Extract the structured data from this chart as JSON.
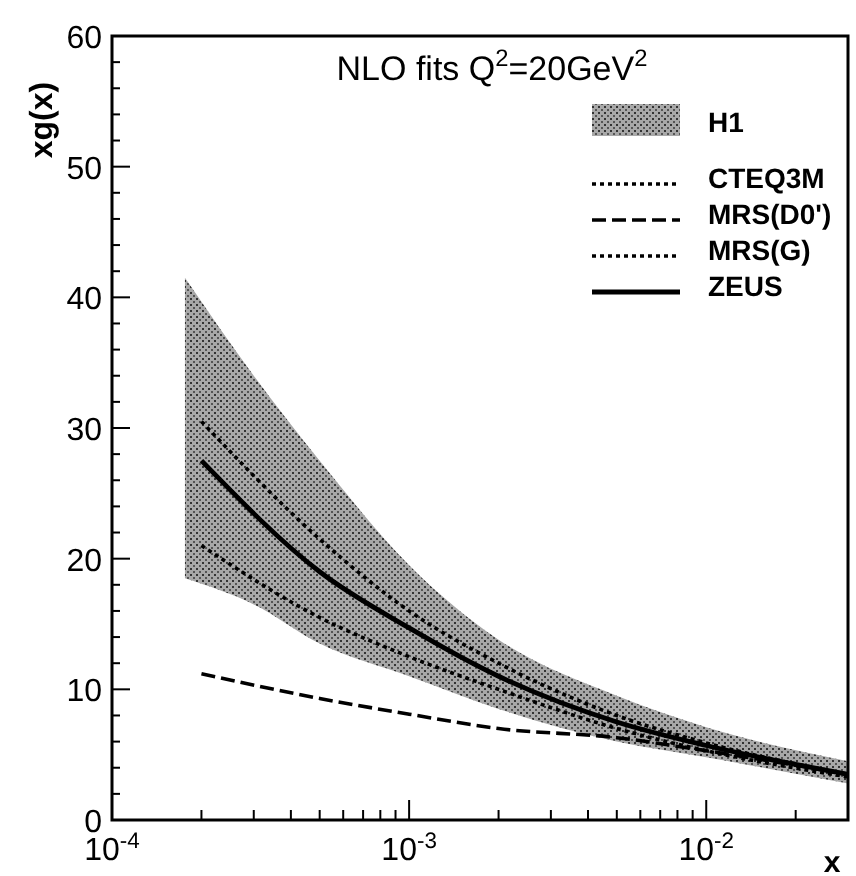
{
  "chart_data": {
    "type": "line",
    "title": "NLO fits  Q$^{2}$=20GeV$^{2}$",
    "xlabel": "x",
    "ylabel": "xg(x)",
    "log": "x",
    "grid": false,
    "legend": "top right",
    "xlim": [
      0.0001,
      0.03
    ],
    "ylim": [
      0,
      60
    ],
    "xticks": [
      {
        "value": 0.0001,
        "label": "10$^{-4}$"
      },
      {
        "value": 0.0002,
        "label": null
      },
      {
        "value": 0.0003,
        "label": null
      },
      {
        "value": 0.0004,
        "label": null
      },
      {
        "value": 0.0005,
        "label": null
      },
      {
        "value": 0.0006,
        "label": null
      },
      {
        "value": 0.0007,
        "label": null
      },
      {
        "value": 0.0008,
        "label": null
      },
      {
        "value": 0.0009,
        "label": null
      },
      {
        "value": 0.001,
        "label": "10$^{-3}$"
      },
      {
        "value": 0.002,
        "label": null
      },
      {
        "value": 0.003,
        "label": null
      },
      {
        "value": 0.004,
        "label": null
      },
      {
        "value": 0.005,
        "label": null
      },
      {
        "value": 0.006,
        "label": null
      },
      {
        "value": 0.007,
        "label": null
      },
      {
        "value": 0.008,
        "label": null
      },
      {
        "value": 0.009,
        "label": null
      },
      {
        "value": 0.01,
        "label": "10$^{-2}$"
      },
      {
        "value": 0.02,
        "label": null
      }
    ],
    "yticks": [
      0,
      {
        "value": 2,
        "label": null
      },
      {
        "value": 4,
        "label": null
      },
      {
        "value": 6,
        "label": null
      },
      {
        "value": 8,
        "label": null
      },
      10,
      {
        "value": 12,
        "label": null
      },
      {
        "value": 14,
        "label": null
      },
      {
        "value": 16,
        "label": null
      },
      {
        "value": 18,
        "label": null
      },
      20,
      {
        "value": 22,
        "label": null
      },
      {
        "value": 24,
        "label": null
      },
      {
        "value": 26,
        "label": null
      },
      {
        "value": 28,
        "label": null
      },
      30,
      {
        "value": 32,
        "label": null
      },
      {
        "value": 34,
        "label": null
      },
      {
        "value": 36,
        "label": null
      },
      {
        "value": 38,
        "label": null
      },
      40,
      {
        "value": 42,
        "label": null
      },
      {
        "value": 44,
        "label": null
      },
      {
        "value": 46,
        "label": null
      },
      {
        "value": 48,
        "label": null
      },
      50,
      {
        "value": 52,
        "label": null
      },
      {
        "value": 54,
        "label": null
      },
      {
        "value": 56,
        "label": null
      },
      {
        "value": 58,
        "label": null
      },
      60
    ],
    "x": [
      0.0002,
      0.0005,
      0.001,
      0.002,
      0.005,
      0.01,
      0.03
    ],
    "series": [
      {
        "name": "H1",
        "type": "area",
        "color": "#a8a8a8",
        "x": [
          0.000176,
          0.0003,
          0.0005,
          0.001,
          0.002,
          0.005,
          0.01,
          0.03
        ],
        "values": [
          null,
          null,
          null,
          null,
          null,
          null,
          null,
          null
        ],
        "lower": [
          18.5,
          16.5,
          13.5,
          11,
          8.5,
          6,
          4.8,
          2.8
        ],
        "upper": [
          41.5,
          34,
          27.5,
          19.5,
          13.8,
          9.5,
          7.1,
          4.5
        ]
      },
      {
        "name": "CTEQ3M",
        "color": "#000000",
        "line_style": "dotted",
        "values": [
          21,
          15.5,
          12.5,
          10,
          7,
          5.3,
          3.3
        ]
      },
      {
        "name": "MRS(D0')",
        "color": "#000000",
        "line_style": "dashed",
        "values": [
          11.2,
          9.3,
          8.1,
          7,
          6.3,
          5.3,
          3.5
        ]
      },
      {
        "name": "MRS(G)",
        "color": "#000000",
        "line_style": "dotted",
        "values": [
          30.5,
          21.5,
          16,
          12,
          8,
          5.9,
          3.5
        ]
      },
      {
        "name": "ZEUS",
        "color": "#000000",
        "line_style": "solid",
        "values": [
          27.5,
          19,
          14.7,
          11,
          7.5,
          5.7,
          3.5
        ]
      }
    ]
  }
}
